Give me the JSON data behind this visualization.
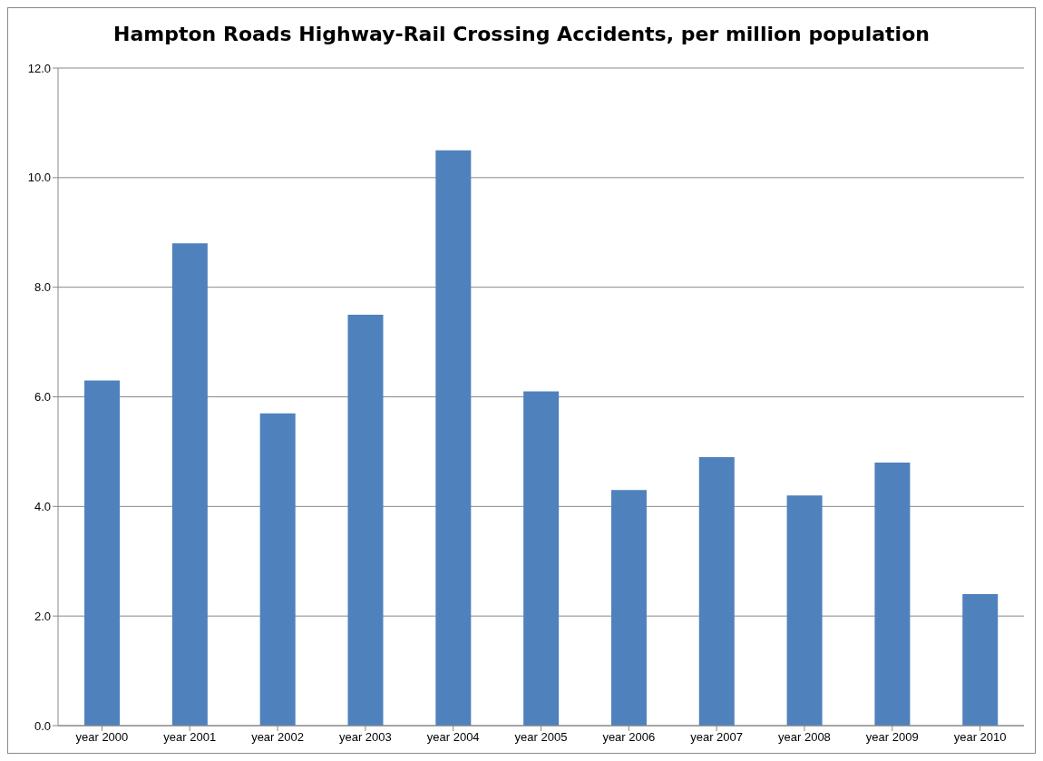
{
  "chart_data": {
    "type": "bar",
    "title": "Hampton Roads Highway-Rail Crossing Accidents, per million population",
    "categories": [
      "year 2000",
      "year 2001",
      "year 2002",
      "year 2003",
      "year 2004",
      "year 2005",
      "year 2006",
      "year 2007",
      "year 2008",
      "year 2009",
      "year 2010"
    ],
    "values": [
      6.3,
      8.8,
      5.7,
      7.5,
      10.5,
      6.1,
      4.3,
      4.9,
      4.2,
      4.8,
      2.4
    ],
    "color": "#4f81bd",
    "ylim": [
      0,
      12
    ],
    "yticks": [
      {
        "value": 0,
        "label": "0.0"
      },
      {
        "value": 2,
        "label": "2.0"
      },
      {
        "value": 4,
        "label": "4.0"
      },
      {
        "value": 6,
        "label": "6.0"
      },
      {
        "value": 8,
        "label": "8.0"
      },
      {
        "value": 10,
        "label": "10.0"
      },
      {
        "value": 12,
        "label": "12.0"
      }
    ],
    "grid": "y"
  }
}
